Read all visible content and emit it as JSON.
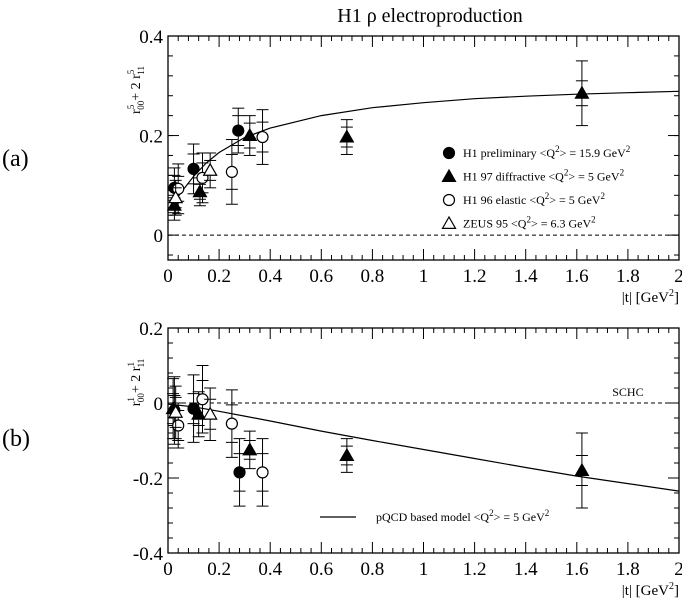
{
  "title": "H1 ρ  electroproduction",
  "chart_data": [
    {
      "type": "scatter",
      "panel_label": "(a)",
      "ylabel_parts": {
        "r1": "r",
        "sup1": "5",
        "sub1": "00",
        "plus": "+ 2 ",
        "r2": "r",
        "sup2": "5",
        "sub2": "11"
      },
      "xlabel_parts": {
        "main": "|t| [GeV",
        "sup": "2",
        "close": "]"
      },
      "xlim": [
        0,
        2
      ],
      "ylim": [
        -0.05,
        0.4
      ],
      "x_ticks": [
        "0",
        "0.2",
        "0.4",
        "0.6",
        "0.8",
        "1",
        "1.2",
        "1.4",
        "1.6",
        "1.8",
        "2"
      ],
      "y_ticks": [
        {
          "value": 0,
          "label": "0"
        },
        {
          "value": 0.2,
          "label": "0.2"
        },
        {
          "value": 0.4,
          "label": "0.4"
        }
      ],
      "reference_line": {
        "y": 0,
        "style": "dashed",
        "label": ""
      },
      "curve": [
        [
          0.02,
          0.062
        ],
        [
          0.05,
          0.085
        ],
        [
          0.1,
          0.118
        ],
        [
          0.15,
          0.145
        ],
        [
          0.2,
          0.166
        ],
        [
          0.3,
          0.196
        ],
        [
          0.4,
          0.215
        ],
        [
          0.6,
          0.24
        ],
        [
          0.8,
          0.256
        ],
        [
          1.0,
          0.266
        ],
        [
          1.2,
          0.274
        ],
        [
          1.4,
          0.279
        ],
        [
          1.6,
          0.283
        ],
        [
          1.8,
          0.286
        ],
        [
          2.0,
          0.289
        ]
      ],
      "legend": {
        "position": "right",
        "entries": [
          {
            "marker": "filled-circle",
            "label": "H1 preliminary <Q",
            "sup": "2",
            "tail": "> = 15.9 GeV",
            "sup2": "2"
          },
          {
            "marker": "filled-triangle",
            "label": "H1 97 diffractive <Q",
            "sup": "2",
            "tail": "> = 5 GeV",
            "sup2": "2"
          },
          {
            "marker": "open-circle",
            "label": "H1 96 elastic <Q",
            "sup": "2",
            "tail": "> = 5 GeV",
            "sup2": "2"
          },
          {
            "marker": "open-triangle",
            "label": "ZEUS 95 <Q",
            "sup": "2",
            "tail": "> = 6.3 GeV",
            "sup2": "2"
          }
        ]
      },
      "series": [
        {
          "marker": "filled-circle",
          "points": [
            {
              "x": 0.025,
              "y": 0.095,
              "err": [
                0.025,
                0.04
              ]
            },
            {
              "x": 0.1,
              "y": 0.133,
              "err": [
                0.03,
                0.05
              ]
            },
            {
              "x": 0.275,
              "y": 0.21,
              "err": [
                0.03,
                0.045
              ]
            }
          ]
        },
        {
          "marker": "filled-triangle",
          "points": [
            {
              "x": 0.025,
              "y": 0.06,
              "err": [
                0.015,
                0.03
              ]
            },
            {
              "x": 0.125,
              "y": 0.087,
              "err": [
                0.015,
                0.028
              ]
            },
            {
              "x": 0.32,
              "y": 0.2,
              "err": [
                0.025,
                0.04
              ]
            },
            {
              "x": 0.7,
              "y": 0.197,
              "err": [
                0.02,
                0.035
              ]
            },
            {
              "x": 1.62,
              "y": 0.285,
              "err": [
                0.025,
                0.065
              ]
            }
          ]
        },
        {
          "marker": "open-circle",
          "points": [
            {
              "x": 0.04,
              "y": 0.093,
              "err": [
                0.025,
                0.05
              ]
            },
            {
              "x": 0.135,
              "y": 0.115,
              "err": [
                0.03,
                0.05
              ]
            },
            {
              "x": 0.25,
              "y": 0.127,
              "err": [
                0.035,
                0.065
              ]
            },
            {
              "x": 0.37,
              "y": 0.197,
              "err": [
                0.03,
                0.055
              ]
            }
          ]
        },
        {
          "marker": "open-triangle",
          "points": [
            {
              "x": 0.03,
              "y": 0.075,
              "err": [
                0.02,
                0.035
              ]
            },
            {
              "x": 0.165,
              "y": 0.13,
              "err": [
                0.02,
                0.035
              ]
            }
          ]
        }
      ]
    },
    {
      "type": "scatter",
      "panel_label": "(b)",
      "ylabel_parts": {
        "r1": "r",
        "sup1": "1",
        "sub1": "00",
        "plus": "+ 2 ",
        "r2": "r",
        "sup2": "1",
        "sub2": "11"
      },
      "xlabel_parts": {
        "main": "|t| [GeV",
        "sup": "2",
        "close": "]"
      },
      "xlim": [
        0,
        2
      ],
      "ylim": [
        -0.4,
        0.2
      ],
      "x_ticks": [
        "0",
        "0.2",
        "0.4",
        "0.6",
        "0.8",
        "1",
        "1.2",
        "1.4",
        "1.6",
        "1.8",
        "2"
      ],
      "y_ticks": [
        {
          "value": -0.4,
          "label": "-0.4"
        },
        {
          "value": -0.2,
          "label": "-0.2"
        },
        {
          "value": 0,
          "label": "0"
        },
        {
          "value": 0.2,
          "label": "0.2"
        }
      ],
      "reference_line": {
        "y": 0,
        "style": "dashed",
        "label": "SCHC"
      },
      "curve": [
        [
          0.0,
          -0.003
        ],
        [
          0.1,
          -0.01
        ],
        [
          0.2,
          -0.022
        ],
        [
          0.3,
          -0.035
        ],
        [
          0.4,
          -0.048
        ],
        [
          0.6,
          -0.075
        ],
        [
          0.8,
          -0.1
        ],
        [
          1.0,
          -0.124
        ],
        [
          1.2,
          -0.148
        ],
        [
          1.4,
          -0.172
        ],
        [
          1.6,
          -0.195
        ],
        [
          1.8,
          -0.215
        ],
        [
          2.0,
          -0.235
        ]
      ],
      "legend": {
        "position": "bottom-right",
        "entries": [
          {
            "marker": "line",
            "label": "pQCD based model <Q",
            "sup": "2",
            "tail": "> = 5 GeV",
            "sup2": "2"
          }
        ]
      },
      "series": [
        {
          "marker": "filled-circle",
          "points": [
            {
              "x": 0.025,
              "y": -0.02,
              "err": [
                0.04,
                0.09
              ]
            },
            {
              "x": 0.1,
              "y": -0.015,
              "err": [
                0.04,
                0.09
              ]
            },
            {
              "x": 0.28,
              "y": -0.185,
              "err": [
                0.05,
                0.09
              ]
            }
          ]
        },
        {
          "marker": "filled-triangle",
          "points": [
            {
              "x": 0.02,
              "y": -0.015,
              "err": [
                0.04,
                0.08
              ]
            },
            {
              "x": 0.12,
              "y": -0.03,
              "err": [
                0.03,
                0.06
              ]
            },
            {
              "x": 0.32,
              "y": -0.125,
              "err": [
                0.025,
                0.05
              ]
            },
            {
              "x": 0.7,
              "y": -0.14,
              "err": [
                0.025,
                0.045
              ]
            },
            {
              "x": 1.62,
              "y": -0.18,
              "err": [
                0.04,
                0.1
              ]
            }
          ]
        },
        {
          "marker": "open-circle",
          "points": [
            {
              "x": 0.04,
              "y": -0.06,
              "err": [
                0.04,
                0.06
              ]
            },
            {
              "x": 0.135,
              "y": 0.01,
              "err": [
                0.05,
                0.09
              ]
            },
            {
              "x": 0.25,
              "y": -0.055,
              "err": [
                0.05,
                0.09
              ]
            },
            {
              "x": 0.37,
              "y": -0.185,
              "err": [
                0.05,
                0.09
              ]
            }
          ]
        },
        {
          "marker": "open-triangle",
          "points": [
            {
              "x": 0.03,
              "y": -0.025,
              "err": [
                0.04,
                0.07
              ]
            },
            {
              "x": 0.165,
              "y": -0.03,
              "err": [
                0.04,
                0.07
              ]
            }
          ]
        }
      ]
    }
  ]
}
